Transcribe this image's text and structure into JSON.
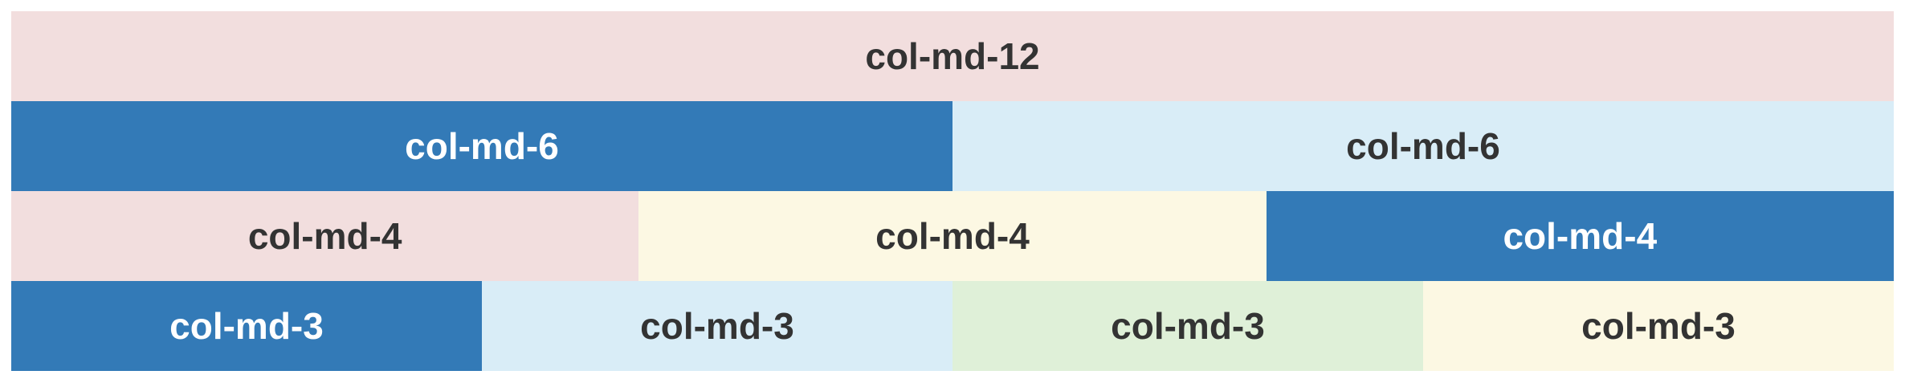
{
  "rows": [
    {
      "cells": [
        {
          "label": "col-md-12",
          "color": "#f2dede"
        }
      ]
    },
    {
      "cells": [
        {
          "label": "col-md-6",
          "color": "#337ab7"
        },
        {
          "label": "col-md-6",
          "color": "#d9edf7"
        }
      ]
    },
    {
      "cells": [
        {
          "label": "col-md-4",
          "color": "#f2dede"
        },
        {
          "label": "col-md-4",
          "color": "#fcf8e3"
        },
        {
          "label": "col-md-4",
          "color": "#337ab7"
        }
      ]
    },
    {
      "cells": [
        {
          "label": "col-md-3",
          "color": "#337ab7"
        },
        {
          "label": "col-md-3",
          "color": "#d9edf7"
        },
        {
          "label": "col-md-3",
          "color": "#dff0d8"
        },
        {
          "label": "col-md-3",
          "color": "#fcf8e3"
        }
      ]
    }
  ]
}
